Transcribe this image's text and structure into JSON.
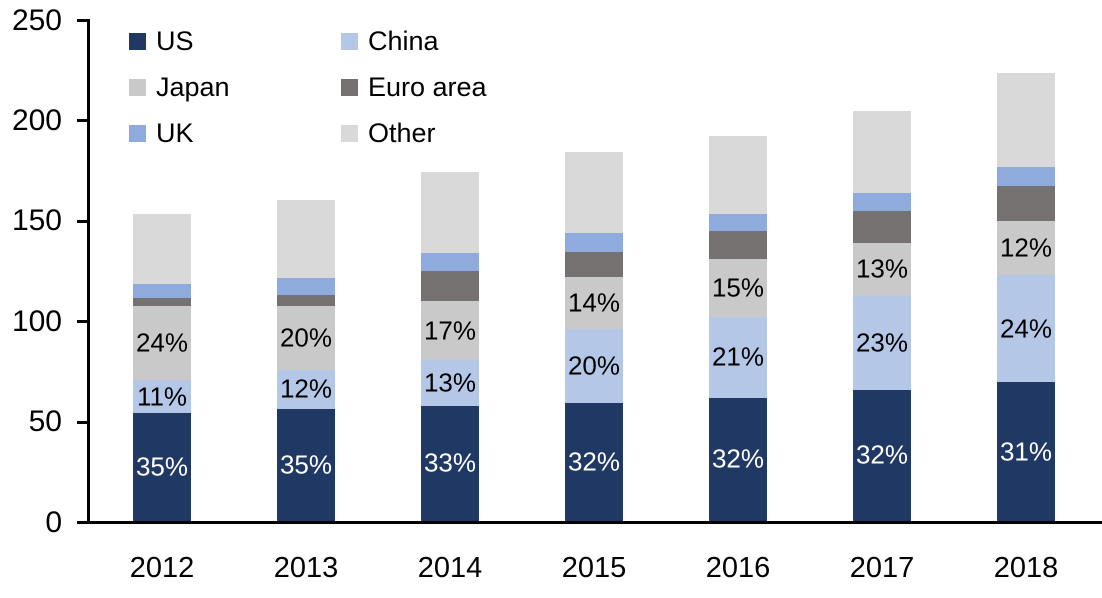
{
  "chart_data": {
    "type": "bar",
    "stacked": true,
    "title": "",
    "xlabel": "",
    "ylabel": "",
    "categories": [
      "2012",
      "2013",
      "2014",
      "2015",
      "2016",
      "2017",
      "2018"
    ],
    "series": [
      {
        "name": "US",
        "color": "#203864",
        "values": [
          53.6,
          56.0,
          57.4,
          58.9,
          61.4,
          65.3,
          69.1
        ],
        "labels": [
          "35%",
          "35%",
          "33%",
          "32%",
          "32%",
          "32%",
          "31%"
        ],
        "label_color": "#ffffff"
      },
      {
        "name": "China",
        "color": "#B4C7E7",
        "values": [
          16.8,
          19.2,
          22.6,
          36.8,
          40.3,
          46.9,
          53.5
        ],
        "labels": [
          "11%",
          "12%",
          "13%",
          "20%",
          "21%",
          "23%",
          "24%"
        ],
        "label_color": "#000000"
      },
      {
        "name": "Japan",
        "color": "#C9C9C9",
        "values": [
          36.7,
          32.0,
          29.6,
          25.8,
          28.8,
          26.5,
          26.8
        ],
        "labels": [
          "24%",
          "20%",
          "17%",
          "14%",
          "15%",
          "13%",
          "12%"
        ],
        "label_color": "#000000"
      },
      {
        "name": "Euro area",
        "color": "#767171",
        "values": [
          4.0,
          5.5,
          15.0,
          12.5,
          14.0,
          15.5,
          17.6
        ],
        "labels": null,
        "label_color": null
      },
      {
        "name": "UK",
        "color": "#8FAADC",
        "values": [
          7.0,
          8.5,
          9.0,
          9.5,
          8.5,
          9.0,
          9.5
        ],
        "labels": null,
        "label_color": null
      },
      {
        "name": "Other",
        "color": "#D9D9D9",
        "values": [
          35.0,
          38.8,
          40.4,
          40.5,
          39.0,
          40.8,
          46.5
        ],
        "labels": null,
        "label_color": null
      }
    ],
    "totals": [
      153.1,
      160.0,
      174.0,
      184.0,
      192.0,
      204.0,
      223.0
    ],
    "ylim": [
      0,
      250
    ],
    "yticks": [
      0,
      50,
      100,
      150,
      200,
      250
    ],
    "grid": false,
    "legend_position": "top-left",
    "legend_order": [
      "US",
      "China",
      "Japan",
      "Euro area",
      "UK",
      "Other"
    ],
    "axis_color": "#000000"
  }
}
